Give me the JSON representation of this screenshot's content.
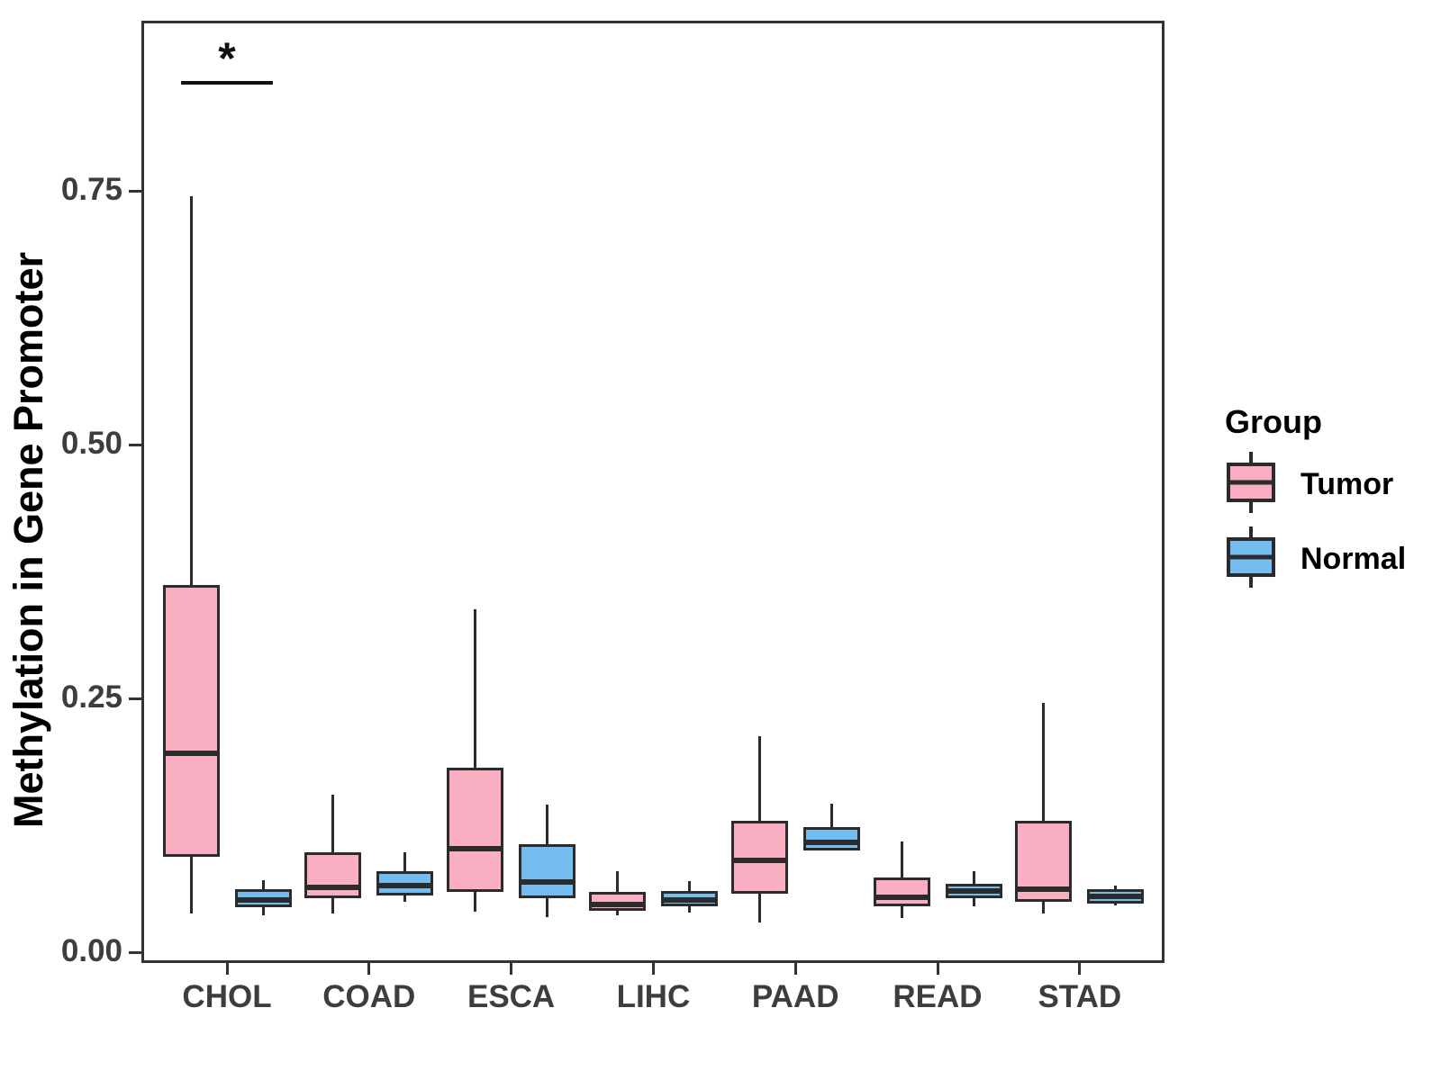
{
  "chart_data": {
    "type": "grouped_boxplot",
    "title": "",
    "xlabel": "",
    "ylabel": "Methylation in Gene Promoter",
    "categories": [
      "CHOL",
      "COAD",
      "ESCA",
      "LIHC",
      "PAAD",
      "READ",
      "STAD"
    ],
    "ylim": [
      0,
      0.92
    ],
    "grid": "off",
    "yticks": [
      {
        "value": 0.0,
        "label": "0.00"
      },
      {
        "value": 0.25,
        "label": "0.25"
      },
      {
        "value": 0.5,
        "label": "0.50"
      },
      {
        "value": 0.75,
        "label": "0.75"
      }
    ],
    "legend": {
      "title": "Group",
      "position": "right",
      "items": [
        {
          "name": "Tumor",
          "color": "#F9AEC1"
        },
        {
          "name": "Normal",
          "color": "#73BDF0"
        }
      ]
    },
    "stroke_color": "#2B2B2B",
    "series": [
      {
        "name": "Tumor",
        "color": "#F9AEC1",
        "boxes": [
          {
            "category": "CHOL",
            "min": 0.038,
            "q1": 0.094,
            "median": 0.196,
            "q3": 0.362,
            "max": 0.745
          },
          {
            "category": "COAD",
            "min": 0.038,
            "q1": 0.053,
            "median": 0.064,
            "q3": 0.098,
            "max": 0.155
          },
          {
            "category": "ESCA",
            "min": 0.04,
            "q1": 0.059,
            "median": 0.102,
            "q3": 0.182,
            "max": 0.338
          },
          {
            "category": "LIHC",
            "min": 0.036,
            "q1": 0.041,
            "median": 0.047,
            "q3": 0.059,
            "max": 0.08
          },
          {
            "category": "PAAD",
            "min": 0.029,
            "q1": 0.058,
            "median": 0.09,
            "q3": 0.129,
            "max": 0.213
          },
          {
            "category": "READ",
            "min": 0.034,
            "q1": 0.045,
            "median": 0.054,
            "q3": 0.074,
            "max": 0.109
          },
          {
            "category": "STAD",
            "min": 0.038,
            "q1": 0.05,
            "median": 0.062,
            "q3": 0.129,
            "max": 0.246
          }
        ]
      },
      {
        "name": "Normal",
        "color": "#73BDF0",
        "boxes": [
          {
            "category": "CHOL",
            "min": 0.036,
            "q1": 0.044,
            "median": 0.051,
            "q3": 0.062,
            "max": 0.071
          },
          {
            "category": "COAD",
            "min": 0.05,
            "q1": 0.056,
            "median": 0.066,
            "q3": 0.08,
            "max": 0.098
          },
          {
            "category": "ESCA",
            "min": 0.035,
            "q1": 0.053,
            "median": 0.069,
            "q3": 0.106,
            "max": 0.145
          },
          {
            "category": "LIHC",
            "min": 0.039,
            "q1": 0.045,
            "median": 0.051,
            "q3": 0.06,
            "max": 0.07
          },
          {
            "category": "PAAD",
            "min": 0.1,
            "q1": 0.1,
            "median": 0.108,
            "q3": 0.123,
            "max": 0.146
          },
          {
            "category": "READ",
            "min": 0.045,
            "q1": 0.053,
            "median": 0.06,
            "q3": 0.067,
            "max": 0.08
          },
          {
            "category": "STAD",
            "min": 0.046,
            "q1": 0.048,
            "median": 0.055,
            "q3": 0.062,
            "max": 0.066
          }
        ]
      }
    ],
    "annotations": [
      {
        "type": "significance",
        "category": "CHOL",
        "label": "*",
        "y": 0.856
      }
    ]
  }
}
